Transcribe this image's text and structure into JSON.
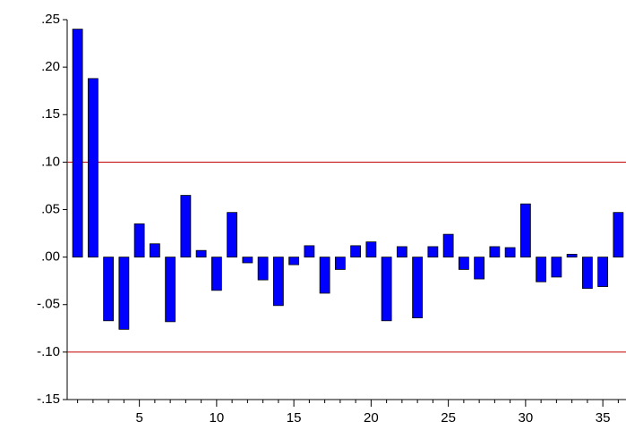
{
  "chart_data": {
    "type": "bar",
    "categories": [
      null,
      null,
      null,
      null,
      "5",
      null,
      null,
      null,
      null,
      "10",
      null,
      null,
      null,
      null,
      "15",
      null,
      null,
      null,
      null,
      "20",
      null,
      null,
      null,
      null,
      "25",
      null,
      null,
      null,
      null,
      "30",
      null,
      null,
      null,
      null,
      "35",
      null
    ],
    "values": [
      0.24,
      0.188,
      -0.067,
      -0.076,
      0.035,
      0.014,
      -0.068,
      0.065,
      0.007,
      -0.035,
      0.047,
      -0.006,
      -0.024,
      -0.051,
      -0.008,
      0.012,
      -0.038,
      -0.013,
      0.012,
      0.016,
      -0.067,
      0.011,
      -0.064,
      0.011,
      0.024,
      -0.013,
      -0.023,
      0.011,
      0.01,
      0.056,
      -0.026,
      -0.021,
      0.003,
      -0.033,
      -0.031,
      0.047
    ],
    "color": "#0000ff",
    "ylim": [
      -0.15,
      0.25
    ],
    "yticks": [
      {
        "value": -0.15,
        "label": "-.15"
      },
      {
        "value": -0.1,
        "label": "-.10"
      },
      {
        "value": -0.05,
        "label": "-.05"
      },
      {
        "value": 0,
        "label": ".00"
      },
      {
        "value": 0.05,
        "label": ".05"
      },
      {
        "value": 0.1,
        "label": ".10"
      },
      {
        "value": 0.15,
        "label": ".15"
      },
      {
        "value": 0.2,
        "label": ".20"
      },
      {
        "value": 0.25,
        "label": ".25"
      }
    ],
    "reference_lines": [
      0.1,
      -0.1
    ],
    "reference_color": "#c00000",
    "grid": false
  }
}
